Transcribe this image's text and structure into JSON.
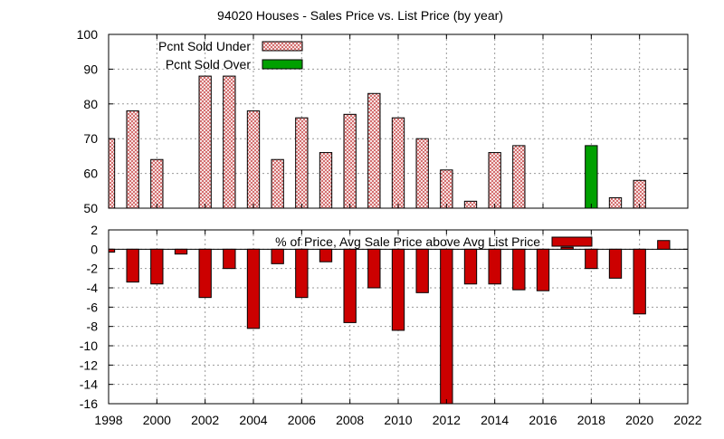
{
  "chart_data": [
    {
      "type": "bar",
      "title": "94020 Houses - Sales Price vs. List Price (by year)",
      "ylim": [
        50,
        100
      ],
      "yticks": [
        50,
        60,
        70,
        80,
        90,
        100
      ],
      "xlim": [
        1998,
        2022
      ],
      "grid": true,
      "legend_position": "top-left",
      "series": [
        {
          "name": "Pcnt Sold Under",
          "color": "#e8a0a0",
          "pattern": "crosshatch",
          "points": [
            {
              "x": 1998,
              "y": 70
            },
            {
              "x": 1999,
              "y": 78
            },
            {
              "x": 2000,
              "y": 64
            },
            {
              "x": 2002,
              "y": 88
            },
            {
              "x": 2003,
              "y": 88
            },
            {
              "x": 2004,
              "y": 78
            },
            {
              "x": 2005,
              "y": 64
            },
            {
              "x": 2006,
              "y": 76
            },
            {
              "x": 2007,
              "y": 66
            },
            {
              "x": 2008,
              "y": 77
            },
            {
              "x": 2009,
              "y": 83
            },
            {
              "x": 2010,
              "y": 76
            },
            {
              "x": 2011,
              "y": 70
            },
            {
              "x": 2012,
              "y": 61
            },
            {
              "x": 2013,
              "y": 52
            },
            {
              "x": 2014,
              "y": 66
            },
            {
              "x": 2015,
              "y": 68
            },
            {
              "x": 2019,
              "y": 53
            },
            {
              "x": 2020,
              "y": 58
            }
          ]
        },
        {
          "name": "Pcnt Sold Over",
          "color": "#00a000",
          "points": [
            {
              "x": 2018,
              "y": 68
            }
          ]
        }
      ]
    },
    {
      "type": "bar",
      "ylim": [
        -16,
        2
      ],
      "yticks": [
        2,
        0,
        -2,
        -4,
        -6,
        -8,
        -10,
        -12,
        -14,
        -16
      ],
      "xlim": [
        1998,
        2022
      ],
      "xticks": [
        1998,
        2000,
        2002,
        2004,
        2006,
        2008,
        2010,
        2012,
        2014,
        2016,
        2018,
        2020,
        2022
      ],
      "grid": true,
      "legend_position": "top",
      "series": [
        {
          "name": "% of Price, Avg Sale Price above Avg List Price",
          "color": "#cc0000",
          "points": [
            {
              "x": 1998,
              "y": -0.3
            },
            {
              "x": 1999,
              "y": -3.4
            },
            {
              "x": 2000,
              "y": -3.6
            },
            {
              "x": 2001,
              "y": -0.5
            },
            {
              "x": 2002,
              "y": -5.0
            },
            {
              "x": 2003,
              "y": -2.0
            },
            {
              "x": 2004,
              "y": -8.2
            },
            {
              "x": 2005,
              "y": -1.5
            },
            {
              "x": 2006,
              "y": -5.0
            },
            {
              "x": 2007,
              "y": -1.3
            },
            {
              "x": 2008,
              "y": -7.6
            },
            {
              "x": 2009,
              "y": -4.0
            },
            {
              "x": 2010,
              "y": -8.4
            },
            {
              "x": 2011,
              "y": -4.5
            },
            {
              "x": 2012,
              "y": -16.0
            },
            {
              "x": 2013,
              "y": -3.6
            },
            {
              "x": 2014,
              "y": -3.6
            },
            {
              "x": 2015,
              "y": -4.2
            },
            {
              "x": 2016,
              "y": -4.3
            },
            {
              "x": 2017,
              "y": 0.2
            },
            {
              "x": 2018,
              "y": -2.0
            },
            {
              "x": 2019,
              "y": -3.0
            },
            {
              "x": 2020,
              "y": -6.7
            },
            {
              "x": 2021,
              "y": 0.9
            }
          ]
        }
      ]
    }
  ]
}
